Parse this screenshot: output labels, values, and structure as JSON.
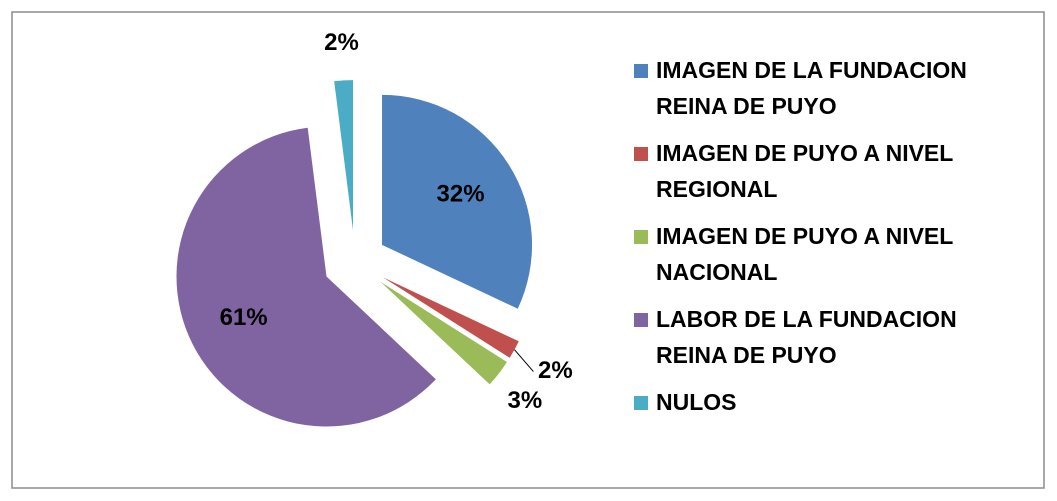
{
  "chart_data": {
    "type": "pie",
    "categories": [
      "IMAGEN DE LA FUNDACION REINA DE PUYO",
      "IMAGEN DE PUYO A NIVEL REGIONAL",
      "IMAGEN DE PUYO A NIVEL NACIONAL",
      "LABOR DE LA FUNDACION REINA DE PUYO",
      "NULOS"
    ],
    "values": [
      32,
      2,
      3,
      61,
      2
    ],
    "value_labels": [
      "32%",
      "2%",
      "3%",
      "61%",
      "2%"
    ],
    "colors": [
      "#4f81bd",
      "#c0504d",
      "#9bbb59",
      "#8064a2",
      "#4bacc6"
    ],
    "legend": "right"
  }
}
